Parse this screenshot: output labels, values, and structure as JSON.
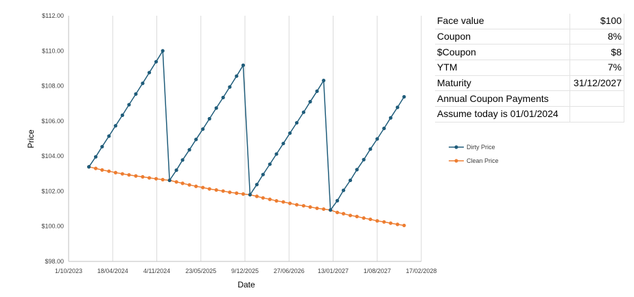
{
  "chart_data": {
    "type": "line",
    "title": "",
    "xlabel": "Date",
    "ylabel": "Price",
    "x_ticks": [
      "1/10/2023",
      "18/04/2024",
      "4/11/2024",
      "23/05/2025",
      "9/12/2025",
      "27/06/2026",
      "13/01/2027",
      "1/08/2027",
      "17/02/2028"
    ],
    "y_ticks": [
      "$98.00",
      "$100.00",
      "$102.00",
      "$104.00",
      "$106.00",
      "$108.00",
      "$110.00",
      "$112.00"
    ],
    "xlim": [
      "2023-10-01",
      "2028-02-17"
    ],
    "ylim": [
      98,
      112
    ],
    "grid": "vertical",
    "legend_position": "right",
    "series": [
      {
        "name": "Dirty Price",
        "color": "#1f5c7a",
        "points": [
          [
            "2024-01-01",
            103.39
          ],
          [
            "2024-02-01",
            103.96
          ],
          [
            "2024-03-01",
            104.54
          ],
          [
            "2024-04-01",
            105.14
          ],
          [
            "2024-05-01",
            105.73
          ],
          [
            "2024-06-01",
            106.33
          ],
          [
            "2024-07-01",
            106.93
          ],
          [
            "2024-08-01",
            107.54
          ],
          [
            "2024-09-01",
            108.15
          ],
          [
            "2024-10-01",
            108.76
          ],
          [
            "2024-11-01",
            109.38
          ],
          [
            "2024-12-01",
            110.0
          ],
          [
            "2025-01-01",
            102.62
          ],
          [
            "2025-02-01",
            103.2
          ],
          [
            "2025-03-01",
            103.78
          ],
          [
            "2025-04-01",
            104.36
          ],
          [
            "2025-05-01",
            104.95
          ],
          [
            "2025-06-01",
            105.54
          ],
          [
            "2025-07-01",
            106.13
          ],
          [
            "2025-08-01",
            106.74
          ],
          [
            "2025-09-01",
            107.34
          ],
          [
            "2025-10-01",
            107.94
          ],
          [
            "2025-11-01",
            108.56
          ],
          [
            "2025-12-01",
            109.18
          ],
          [
            "2026-01-01",
            101.8
          ],
          [
            "2026-02-01",
            102.38
          ],
          [
            "2026-03-01",
            102.95
          ],
          [
            "2026-04-01",
            103.54
          ],
          [
            "2026-05-01",
            104.12
          ],
          [
            "2026-06-01",
            104.72
          ],
          [
            "2026-07-01",
            105.31
          ],
          [
            "2026-08-01",
            105.9
          ],
          [
            "2026-09-01",
            106.5
          ],
          [
            "2026-10-01",
            107.1
          ],
          [
            "2026-11-01",
            107.7
          ],
          [
            "2026-12-01",
            108.31
          ],
          [
            "2027-01-01",
            100.93
          ],
          [
            "2027-02-01",
            101.46
          ],
          [
            "2027-03-01",
            102.05
          ],
          [
            "2027-04-01",
            102.62
          ],
          [
            "2027-05-01",
            103.23
          ],
          [
            "2027-06-01",
            103.8
          ],
          [
            "2027-07-01",
            104.4
          ],
          [
            "2027-08-01",
            104.98
          ],
          [
            "2027-09-01",
            105.58
          ],
          [
            "2027-10-01",
            106.18
          ],
          [
            "2027-11-01",
            106.78
          ],
          [
            "2027-12-01",
            107.38
          ]
        ]
      },
      {
        "name": "Clean Price",
        "color": "#ed7d31",
        "points": [
          [
            "2024-01-01",
            103.39
          ],
          [
            "2024-02-01",
            103.3
          ],
          [
            "2024-03-01",
            103.21
          ],
          [
            "2024-04-01",
            103.14
          ],
          [
            "2024-05-01",
            103.06
          ],
          [
            "2024-06-01",
            102.99
          ],
          [
            "2024-07-01",
            102.93
          ],
          [
            "2024-08-01",
            102.87
          ],
          [
            "2024-09-01",
            102.82
          ],
          [
            "2024-10-01",
            102.76
          ],
          [
            "2024-11-01",
            102.71
          ],
          [
            "2024-12-01",
            102.66
          ],
          [
            "2025-01-01",
            102.62
          ],
          [
            "2025-02-01",
            102.53
          ],
          [
            "2025-03-01",
            102.45
          ],
          [
            "2025-04-01",
            102.36
          ],
          [
            "2025-05-01",
            102.28
          ],
          [
            "2025-06-01",
            102.21
          ],
          [
            "2025-07-01",
            102.13
          ],
          [
            "2025-08-01",
            102.07
          ],
          [
            "2025-09-01",
            102.01
          ],
          [
            "2025-10-01",
            101.94
          ],
          [
            "2025-11-01",
            101.89
          ],
          [
            "2025-12-01",
            101.84
          ],
          [
            "2026-01-01",
            101.8
          ],
          [
            "2026-02-01",
            101.71
          ],
          [
            "2026-03-01",
            101.62
          ],
          [
            "2026-04-01",
            101.54
          ],
          [
            "2026-05-01",
            101.45
          ],
          [
            "2026-06-01",
            101.39
          ],
          [
            "2026-07-01",
            101.31
          ],
          [
            "2026-08-01",
            101.23
          ],
          [
            "2026-09-01",
            101.17
          ],
          [
            "2026-10-01",
            101.1
          ],
          [
            "2026-11-01",
            101.03
          ],
          [
            "2026-12-01",
            100.98
          ],
          [
            "2027-01-01",
            100.93
          ],
          [
            "2027-02-01",
            100.79
          ],
          [
            "2027-03-01",
            100.72
          ],
          [
            "2027-04-01",
            100.62
          ],
          [
            "2027-05-01",
            100.56
          ],
          [
            "2027-06-01",
            100.47
          ],
          [
            "2027-07-01",
            100.4
          ],
          [
            "2027-08-01",
            100.31
          ],
          [
            "2027-09-01",
            100.25
          ],
          [
            "2027-10-01",
            100.18
          ],
          [
            "2027-11-01",
            100.11
          ],
          [
            "2027-12-01",
            100.05
          ]
        ]
      }
    ]
  },
  "info_table": [
    {
      "label": "Face value",
      "value": "$100"
    },
    {
      "label": "Coupon",
      "value": "8%"
    },
    {
      "label": "$Coupon",
      "value": "$8"
    },
    {
      "label": "YTM",
      "value": "7%"
    },
    {
      "label": "Maturity",
      "value": "31/12/2027"
    },
    {
      "label": "Annual Coupon Payments",
      "value": ""
    },
    {
      "label": "Assume today is 01/01/2024",
      "value": ""
    }
  ]
}
